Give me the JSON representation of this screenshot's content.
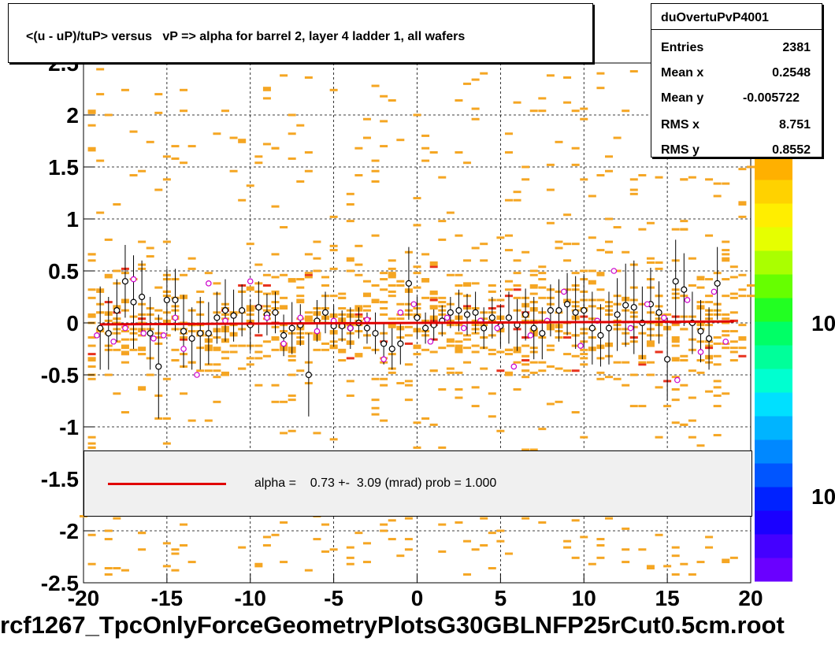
{
  "chart_data": {
    "type": "scatter",
    "title": "<(u - uP)/tuP> versus   vP => alpha for barrel 2, layer 4 ladder 1, all wafers",
    "xlim": [
      -20,
      20
    ],
    "ylim": [
      -2.5,
      2.5
    ],
    "x_ticks": [
      "-20",
      "-15",
      "-10",
      "-5",
      "0",
      "5",
      "10",
      "15",
      "20"
    ],
    "y_ticks": [
      "-2.5",
      "-2",
      "-1.5",
      "-1",
      "-0.5",
      "0",
      "0.5",
      "1",
      "1.5",
      "2",
      "2.5"
    ],
    "z_ticks": [
      "10",
      "10"
    ],
    "grid": true,
    "colors": {
      "fit_line": "#e00000",
      "hist_low": "#f5a623",
      "hist_high": "#e8321e",
      "profile_black": "#000000",
      "profile_magenta": "#cc00cc"
    },
    "fit": {
      "slope": 0.00073,
      "intercept": -0.0
    },
    "profile_black": [
      {
        "x": -19.0,
        "y": -0.05,
        "e": 0.4
      },
      {
        "x": -18.5,
        "y": -0.1,
        "e": 0.35
      },
      {
        "x": -18.0,
        "y": 0.12,
        "e": 0.3
      },
      {
        "x": -17.5,
        "y": 0.4,
        "e": 0.35
      },
      {
        "x": -17.0,
        "y": 0.2,
        "e": 0.45
      },
      {
        "x": -16.5,
        "y": 0.25,
        "e": 0.35
      },
      {
        "x": -16.0,
        "y": -0.1,
        "e": 0.35
      },
      {
        "x": -15.5,
        "y": -0.42,
        "e": 0.5
      },
      {
        "x": -15.0,
        "y": 0.22,
        "e": 0.3
      },
      {
        "x": -14.5,
        "y": 0.22,
        "e": 0.3
      },
      {
        "x": -14.0,
        "y": -0.08,
        "e": 0.35
      },
      {
        "x": -13.5,
        "y": -0.15,
        "e": 0.3
      },
      {
        "x": -13.0,
        "y": -0.1,
        "e": 0.35
      },
      {
        "x": -12.5,
        "y": -0.1,
        "e": 0.3
      },
      {
        "x": -12.0,
        "y": 0.05,
        "e": 0.25
      },
      {
        "x": -11.5,
        "y": 0.12,
        "e": 0.3
      },
      {
        "x": -11.0,
        "y": 0.07,
        "e": 0.25
      },
      {
        "x": -10.5,
        "y": 0.12,
        "e": 0.25
      },
      {
        "x": -10.0,
        "y": -0.02,
        "e": 0.25
      },
      {
        "x": -9.5,
        "y": 0.15,
        "e": 0.25
      },
      {
        "x": -9.0,
        "y": 0.08,
        "e": 0.2
      },
      {
        "x": -8.5,
        "y": 0.1,
        "e": 0.2
      },
      {
        "x": -8.0,
        "y": -0.12,
        "e": 0.2
      },
      {
        "x": -7.5,
        "y": -0.05,
        "e": 0.25
      },
      {
        "x": -7.0,
        "y": -0.02,
        "e": 0.2
      },
      {
        "x": -6.5,
        "y": -0.5,
        "e": 0.4
      },
      {
        "x": -6.0,
        "y": 0.02,
        "e": 0.2
      },
      {
        "x": -5.5,
        "y": 0.1,
        "e": 0.2
      },
      {
        "x": -5.0,
        "y": -0.03,
        "e": 0.2
      },
      {
        "x": -4.5,
        "y": -0.03,
        "e": 0.15
      },
      {
        "x": -4.0,
        "y": -0.05,
        "e": 0.2
      },
      {
        "x": -3.5,
        "y": 0.0,
        "e": 0.15
      },
      {
        "x": -3.0,
        "y": -0.05,
        "e": 0.15
      },
      {
        "x": -2.5,
        "y": -0.1,
        "e": 0.2
      },
      {
        "x": -2.0,
        "y": -0.2,
        "e": 0.2
      },
      {
        "x": -1.5,
        "y": -0.25,
        "e": 0.2
      },
      {
        "x": -1.0,
        "y": -0.2,
        "e": 0.2
      },
      {
        "x": -0.5,
        "y": 0.38,
        "e": 0.35
      },
      {
        "x": 0.0,
        "y": 0.05,
        "e": 0.2
      },
      {
        "x": 0.5,
        "y": -0.05,
        "e": 0.15
      },
      {
        "x": 1.0,
        "y": -0.02,
        "e": 0.15
      },
      {
        "x": 1.5,
        "y": 0.02,
        "e": 0.15
      },
      {
        "x": 2.0,
        "y": 0.1,
        "e": 0.15
      },
      {
        "x": 2.5,
        "y": 0.12,
        "e": 0.2
      },
      {
        "x": 3.0,
        "y": 0.08,
        "e": 0.2
      },
      {
        "x": 3.5,
        "y": 0.1,
        "e": 0.2
      },
      {
        "x": 4.0,
        "y": -0.05,
        "e": 0.2
      },
      {
        "x": 4.5,
        "y": 0.05,
        "e": 0.2
      },
      {
        "x": 5.0,
        "y": -0.03,
        "e": 0.2
      },
      {
        "x": 5.5,
        "y": 0.05,
        "e": 0.25
      },
      {
        "x": 6.0,
        "y": -0.02,
        "e": 0.25
      },
      {
        "x": 6.5,
        "y": 0.08,
        "e": 0.25
      },
      {
        "x": 7.0,
        "y": -0.05,
        "e": 0.3
      },
      {
        "x": 7.5,
        "y": -0.1,
        "e": 0.25
      },
      {
        "x": 8.0,
        "y": 0.12,
        "e": 0.25
      },
      {
        "x": 8.5,
        "y": 0.12,
        "e": 0.3
      },
      {
        "x": 9.0,
        "y": 0.18,
        "e": 0.3
      },
      {
        "x": 9.5,
        "y": 0.1,
        "e": 0.35
      },
      {
        "x": 10.0,
        "y": 0.12,
        "e": 0.35
      },
      {
        "x": 10.5,
        "y": -0.05,
        "e": 0.35
      },
      {
        "x": 11.0,
        "y": -0.12,
        "e": 0.3
      },
      {
        "x": 11.5,
        "y": -0.05,
        "e": 0.35
      },
      {
        "x": 12.0,
        "y": 0.08,
        "e": 0.35
      },
      {
        "x": 12.5,
        "y": 0.17,
        "e": 0.4
      },
      {
        "x": 13.0,
        "y": 0.15,
        "e": 0.45
      },
      {
        "x": 13.5,
        "y": 0.0,
        "e": 0.35
      },
      {
        "x": 14.0,
        "y": 0.18,
        "e": 0.35
      },
      {
        "x": 14.5,
        "y": 0.1,
        "e": 0.3
      },
      {
        "x": 15.0,
        "y": -0.35,
        "e": 0.4
      },
      {
        "x": 15.5,
        "y": 0.4,
        "e": 0.4
      },
      {
        "x": 16.0,
        "y": 0.32,
        "e": 0.35
      },
      {
        "x": 16.5,
        "y": 0.0,
        "e": 0.3
      },
      {
        "x": 17.0,
        "y": -0.08,
        "e": 0.3
      },
      {
        "x": 17.5,
        "y": -0.15,
        "e": 0.3
      },
      {
        "x": 18.0,
        "y": 0.38,
        "e": 0.35
      }
    ],
    "profile_magenta": [
      {
        "x": -19.2,
        "y": -0.12
      },
      {
        "x": -18.2,
        "y": -0.18
      },
      {
        "x": -17.5,
        "y": -0.05
      },
      {
        "x": -17.0,
        "y": 0.42
      },
      {
        "x": -16.4,
        "y": -0.1
      },
      {
        "x": -15.8,
        "y": -0.15
      },
      {
        "x": -15.2,
        "y": -0.12
      },
      {
        "x": -14.5,
        "y": 0.05
      },
      {
        "x": -14.0,
        "y": -0.25
      },
      {
        "x": -13.2,
        "y": -0.5
      },
      {
        "x": -12.5,
        "y": 0.38
      },
      {
        "x": -11.5,
        "y": 0.02
      },
      {
        "x": -10.0,
        "y": 0.4
      },
      {
        "x": -9.0,
        "y": 0.05
      },
      {
        "x": -8.0,
        "y": -0.2
      },
      {
        "x": -7.0,
        "y": 0.05
      },
      {
        "x": -6.0,
        "y": -0.08
      },
      {
        "x": -5.0,
        "y": 0.02
      },
      {
        "x": -4.0,
        "y": -0.05
      },
      {
        "x": -3.0,
        "y": 0.03
      },
      {
        "x": -2.0,
        "y": -0.35
      },
      {
        "x": -1.0,
        "y": 0.1
      },
      {
        "x": -0.2,
        "y": 0.18
      },
      {
        "x": 0.8,
        "y": -0.18
      },
      {
        "x": 1.8,
        "y": 0.05
      },
      {
        "x": 2.8,
        "y": -0.05
      },
      {
        "x": 3.8,
        "y": 0.02
      },
      {
        "x": 4.8,
        "y": -0.05
      },
      {
        "x": 5.8,
        "y": -0.42
      },
      {
        "x": 6.8,
        "y": -0.12
      },
      {
        "x": 7.8,
        "y": 0.02
      },
      {
        "x": 8.8,
        "y": 0.3
      },
      {
        "x": 9.8,
        "y": -0.22
      },
      {
        "x": 10.8,
        "y": 0.02
      },
      {
        "x": 11.8,
        "y": 0.5
      },
      {
        "x": 12.8,
        "y": -0.05
      },
      {
        "x": 13.8,
        "y": 0.18
      },
      {
        "x": 14.8,
        "y": 0.05
      },
      {
        "x": 15.6,
        "y": -0.55
      },
      {
        "x": 16.2,
        "y": 0.22
      },
      {
        "x": 17.0,
        "y": -0.28
      },
      {
        "x": 17.8,
        "y": 0.3
      },
      {
        "x": 18.5,
        "y": -0.18
      }
    ]
  },
  "title": "<(u - uP)/tuP> versus   vP => alpha for barrel 2, layer 4 ladder 1, all wafers",
  "stats": {
    "name": "duOvertuPvP4001",
    "rows": [
      {
        "label": "Entries",
        "value": "2381"
      },
      {
        "label": "Mean x",
        "value": "0.2548"
      },
      {
        "label": "Mean y",
        "value": "-0.005722"
      },
      {
        "label": "RMS x",
        "value": "8.751"
      },
      {
        "label": "RMS y",
        "value": "0.8552"
      }
    ]
  },
  "legend": {
    "text": "alpha =    0.73 +-  3.09 (mrad) prob = 1.000"
  },
  "footer": "rcf1267_TpcOnlyForceGeometryPlotsG30GBLNFP25rCut0.5cm.root"
}
